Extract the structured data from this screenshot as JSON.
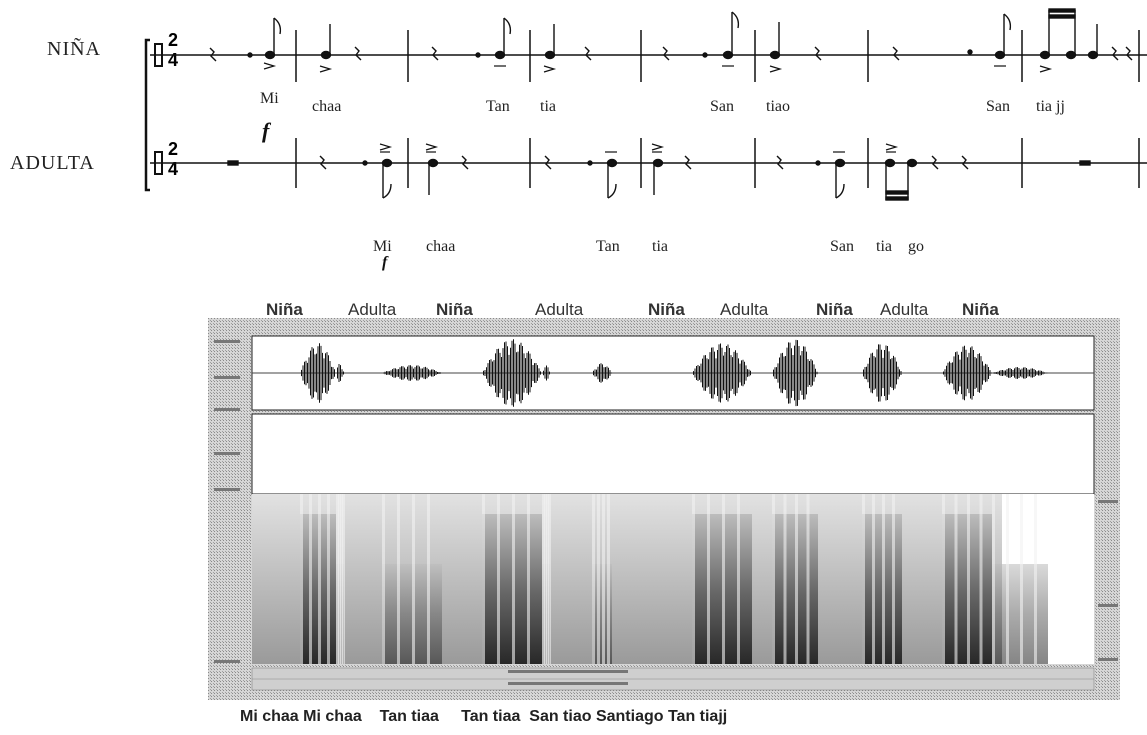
{
  "score": {
    "staves": [
      {
        "name": "NIÑA"
      },
      {
        "name": "ADULTA"
      }
    ],
    "time_signature": {
      "top": "2",
      "bottom": "4"
    },
    "lyrics_nina": [
      "Mi",
      "chaa",
      "Tan",
      "tia",
      "San",
      "tiao",
      "San",
      "tia jj"
    ],
    "lyrics_adulta": [
      "Mi",
      "chaa",
      "Tan",
      "tia",
      "San",
      "tia",
      "go"
    ],
    "dynamic_nina": "f",
    "dynamic_adulta": "f"
  },
  "spectrogram": {
    "speaker_labels": [
      "Niña",
      "Adulta",
      "Niña",
      "Adulta",
      "Niña",
      "Adulta",
      "Niña",
      "Adulta",
      "Niña"
    ],
    "bottom_caption": "Mi chaa Mi chaa    Tan tiaa     Tan tiaa  San tiao Santiago Tan tiajj"
  }
}
